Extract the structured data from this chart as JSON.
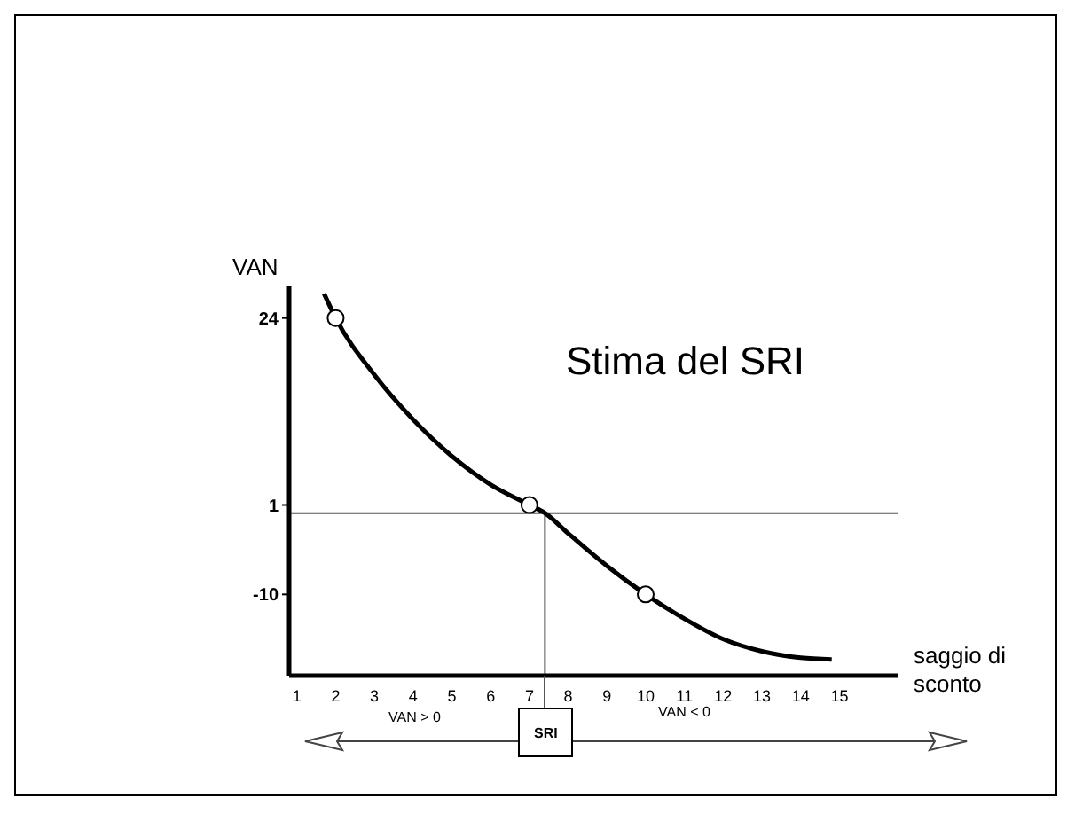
{
  "chart_data": {
    "type": "line",
    "title": "Stima del SRI",
    "xlabel": "saggio di sconto",
    "ylabel": "VAN",
    "xlim": [
      0.8,
      16.5
    ],
    "xticks": [
      1,
      2,
      3,
      4,
      5,
      6,
      7,
      8,
      9,
      10,
      11,
      12,
      13,
      14,
      15
    ],
    "ylim": [
      -20,
      28
    ],
    "yticks": [
      24,
      1,
      -10
    ],
    "series": [
      {
        "color": "#000000",
        "marker": "none",
        "x": [
          1.7,
          2,
          3,
          4,
          5,
          6,
          7,
          7.4,
          8,
          9,
          10,
          11,
          12,
          13,
          14,
          14.8
        ],
        "values": [
          27,
          24,
          17,
          11.5,
          7,
          3.5,
          1,
          0,
          -2.5,
          -6.5,
          -10,
          -13,
          -15.5,
          -17,
          -17.8,
          -18
        ]
      },
      {
        "type": "scatter",
        "color": "#000000",
        "marker": "circle",
        "x": [
          2,
          7,
          10
        ],
        "values": [
          24,
          1,
          -10
        ]
      }
    ],
    "ref_lines": [
      {
        "axis": "y",
        "value": 0,
        "color": "#555555"
      },
      {
        "axis": "x",
        "value": 7.4,
        "color": "#555555"
      }
    ],
    "annotations": [
      "VAN > 0",
      "SRI",
      "VAN < 0"
    ]
  }
}
